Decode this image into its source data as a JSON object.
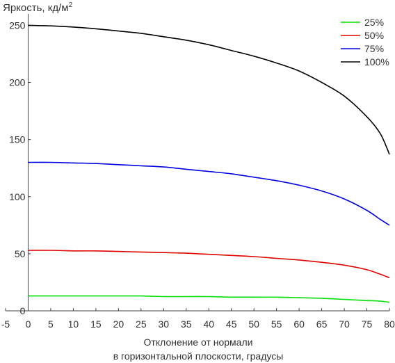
{
  "chart_data": {
    "type": "line",
    "ylabel": "Яркость, кд/м",
    "ylabel_sup": "2",
    "xlabel_line1": "Отклонение от нормали",
    "xlabel_line2": "в горизонтальной плоскости, градусы",
    "xlim": [
      -5,
      80
    ],
    "ylim": [
      0,
      260
    ],
    "xticks": [
      -5,
      0,
      5,
      10,
      15,
      20,
      25,
      30,
      35,
      40,
      45,
      50,
      55,
      60,
      65,
      70,
      75,
      80
    ],
    "yticks": [
      0,
      50,
      100,
      150,
      200,
      250
    ],
    "grid": false,
    "legend_position": "top-right",
    "x": [
      0,
      5,
      10,
      15,
      20,
      25,
      30,
      35,
      40,
      45,
      50,
      55,
      60,
      65,
      70,
      75,
      78,
      80
    ],
    "series": [
      {
        "name": "25%",
        "color": "#00e000",
        "values": [
          13,
          13,
          13,
          13,
          13,
          13,
          12.5,
          12.5,
          12.5,
          12,
          12,
          12,
          11.5,
          11,
          10,
          9,
          8.5,
          7.5
        ]
      },
      {
        "name": "50%",
        "color": "#e00000",
        "values": [
          53,
          53,
          52.5,
          52.5,
          52,
          51.5,
          51,
          50.5,
          49.5,
          48.5,
          47.5,
          46,
          44.5,
          42.5,
          40,
          36,
          32,
          29
        ]
      },
      {
        "name": "75%",
        "color": "#0000e0",
        "values": [
          130,
          130,
          129.5,
          129,
          128,
          127,
          126,
          124,
          122,
          120,
          117,
          114,
          110,
          105,
          98,
          88,
          80,
          75
        ]
      },
      {
        "name": "100%",
        "color": "#000000",
        "values": [
          250,
          249.5,
          248.5,
          247,
          245,
          243,
          240,
          237,
          233,
          228,
          223,
          217,
          210,
          200,
          188,
          170,
          155,
          137
        ]
      }
    ]
  }
}
